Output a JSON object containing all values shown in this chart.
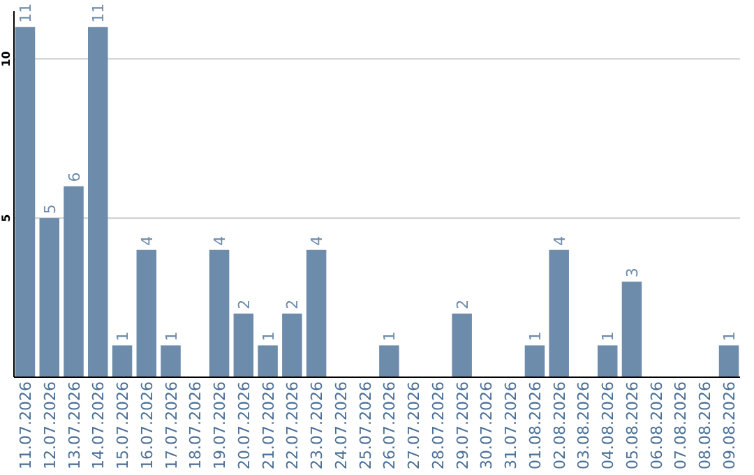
{
  "chart_data": {
    "type": "bar",
    "categories": [
      "11.07.2026",
      "12.07.2026",
      "13.07.2026",
      "14.07.2026",
      "15.07.2026",
      "16.07.2026",
      "17.07.2026",
      "18.07.2026",
      "19.07.2026",
      "20.07.2026",
      "21.07.2026",
      "22.07.2026",
      "23.07.2026",
      "24.07.2026",
      "25.07.2026",
      "26.07.2026",
      "27.07.2026",
      "28.07.2026",
      "29.07.2026",
      "30.07.2026",
      "31.07.2026",
      "01.08.2026",
      "02.08.2026",
      "03.08.2026",
      "04.08.2026",
      "05.08.2026",
      "06.08.2026",
      "07.08.2026",
      "08.08.2026",
      "09.08.2026"
    ],
    "values": [
      11,
      5,
      6,
      11,
      1,
      4,
      1,
      0,
      4,
      2,
      1,
      2,
      4,
      0,
      0,
      1,
      0,
      0,
      2,
      0,
      0,
      1,
      4,
      0,
      1,
      3,
      0,
      0,
      0,
      1
    ],
    "value_labels": [
      "11",
      "5",
      "6",
      "11",
      "1",
      "4",
      "1",
      null,
      "4",
      "2",
      "1",
      "2",
      "4",
      null,
      null,
      "1",
      null,
      null,
      "2",
      null,
      null,
      "1",
      "4",
      null,
      "1",
      "3",
      null,
      null,
      null,
      "1"
    ],
    "color": "#6d8cab",
    "ylim": [
      0,
      11.5
    ],
    "yticks": [
      5,
      10
    ],
    "grid": "y"
  }
}
